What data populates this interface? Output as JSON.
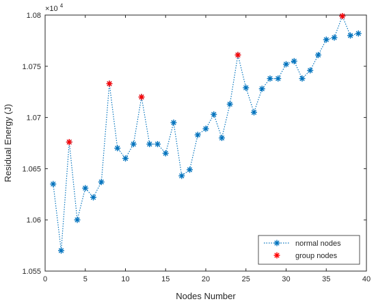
{
  "chart_data": {
    "type": "scatter",
    "xlabel": "Nodes Number",
    "ylabel": "Residual Energy (J)",
    "y_multiplier": "×10",
    "y_exponent": "4",
    "xlim": [
      0,
      40
    ],
    "ylim": [
      1.055,
      1.08
    ],
    "x_ticks": [
      0,
      5,
      10,
      15,
      20,
      25,
      30,
      35,
      40
    ],
    "x_tick_labels": [
      "0",
      "5",
      "10",
      "15",
      "20",
      "25",
      "30",
      "35",
      "40"
    ],
    "y_ticks": [
      1.055,
      1.06,
      1.065,
      1.07,
      1.075,
      1.08
    ],
    "y_tick_labels": [
      "1.055",
      "1.06",
      "1.065",
      "1.07",
      "1.075",
      "1.08"
    ],
    "grid": false,
    "legend_position": "bottom-right",
    "series": [
      {
        "name": "normal nodes",
        "color": "#0072BD",
        "line": "dotted",
        "marker": "asterisk",
        "x": [
          1,
          2,
          3,
          4,
          5,
          6,
          7,
          8,
          9,
          10,
          11,
          12,
          13,
          14,
          15,
          16,
          17,
          18,
          19,
          20,
          21,
          22,
          23,
          24,
          25,
          26,
          27,
          28,
          29,
          30,
          31,
          32,
          33,
          34,
          35,
          36,
          37,
          38,
          39
        ],
        "values": [
          1.0635,
          1.057,
          1.0676,
          1.06,
          1.0631,
          1.0622,
          1.0637,
          1.0733,
          1.067,
          1.066,
          1.0674,
          1.072,
          1.0674,
          1.0674,
          1.0665,
          1.0695,
          1.0643,
          1.0649,
          1.0683,
          1.0689,
          1.0703,
          1.068,
          1.0713,
          1.0761,
          1.0729,
          1.0705,
          1.0728,
          1.0738,
          1.0738,
          1.0752,
          1.0755,
          1.0738,
          1.0746,
          1.0761,
          1.0776,
          1.0778,
          1.0799,
          1.078,
          1.0782
        ]
      },
      {
        "name": "group nodes",
        "color": "#FF0000",
        "line": "none",
        "marker": "asterisk",
        "x": [
          3,
          8,
          12,
          24,
          37
        ],
        "values": [
          1.0676,
          1.0733,
          1.072,
          1.0761,
          1.0799
        ]
      }
    ]
  }
}
